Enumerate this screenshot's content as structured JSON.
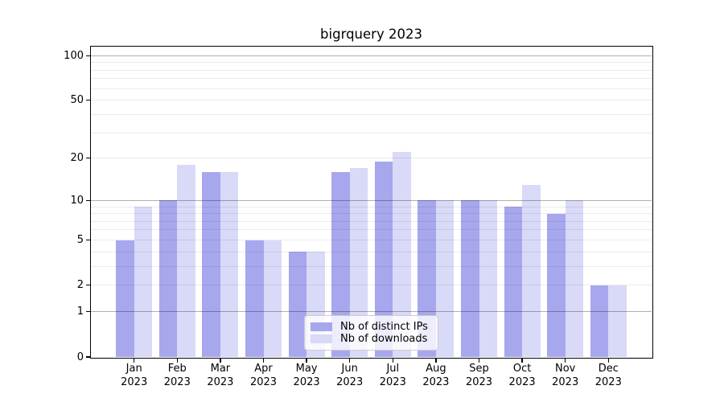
{
  "chart_data": {
    "type": "bar",
    "title": "bigrquery 2023",
    "categories": [
      "Jan",
      "Feb",
      "Mar",
      "Apr",
      "May",
      "Jun",
      "Jul",
      "Aug",
      "Sep",
      "Oct",
      "Nov",
      "Dec"
    ],
    "category_year": "2023",
    "series": [
      {
        "name": "Nb of distinct IPs",
        "color": "#a7a7ee",
        "values": [
          5,
          10,
          16,
          5,
          4,
          16,
          19,
          10,
          10,
          9,
          8,
          2
        ]
      },
      {
        "name": "Nb of downloads",
        "color": "#d9d9f8",
        "values": [
          9,
          18,
          16,
          5,
          4,
          17,
          22,
          10,
          10,
          13,
          10,
          2
        ]
      }
    ],
    "xlabel": "",
    "ylabel": "",
    "yscale": "log1p",
    "ylim": [
      0,
      115
    ],
    "yticks": [
      0,
      1,
      2,
      5,
      10,
      20,
      50,
      100
    ],
    "grid": {
      "major_lines": [
        1,
        10,
        100
      ],
      "minor_lines": [
        2,
        3,
        4,
        5,
        6,
        7,
        8,
        9,
        20,
        30,
        40,
        50,
        60,
        70,
        80,
        90
      ],
      "major_color": "rgba(0,0,0,0.31)",
      "minor_color": "rgba(0,0,0,0.08)"
    },
    "legend": {
      "position": "lower center"
    }
  }
}
